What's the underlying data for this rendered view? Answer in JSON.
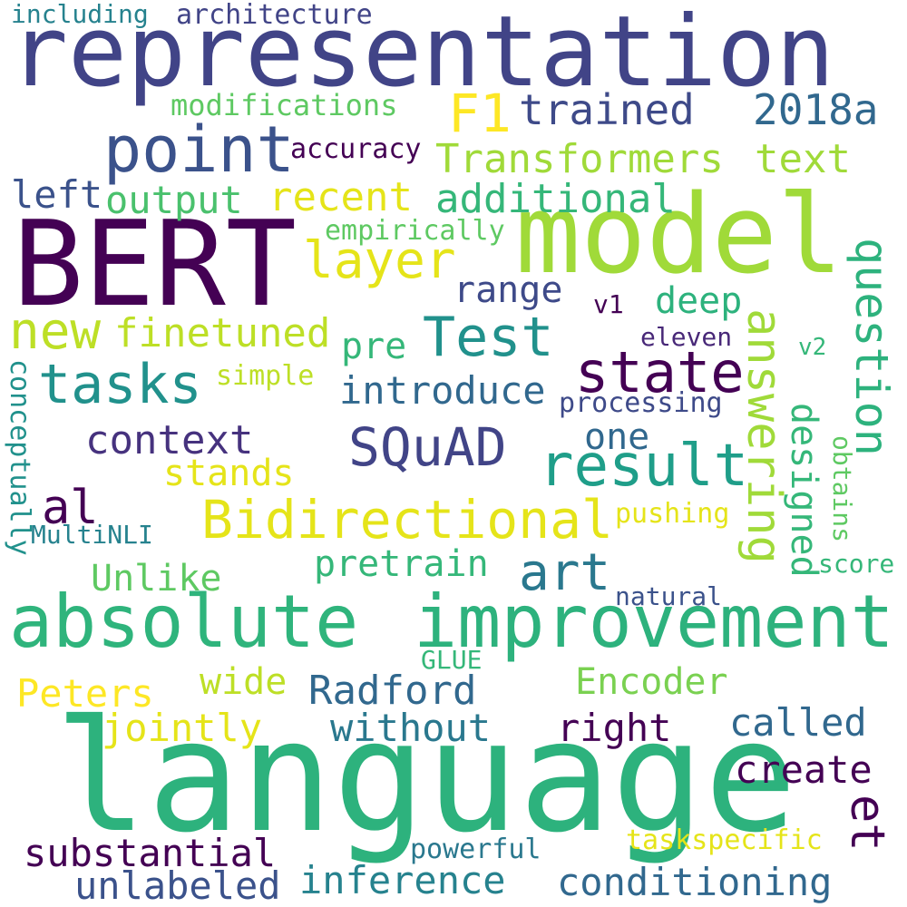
{
  "words": [
    {
      "text": "representation",
      "color": "#414487"
    },
    {
      "text": "BERT",
      "color": "#440154"
    },
    {
      "text": "model",
      "color": "#a0da39"
    },
    {
      "text": "language",
      "color": "#2db27d"
    },
    {
      "text": "absolute",
      "color": "#2fb47c"
    },
    {
      "text": "improvement",
      "color": "#2db27d"
    },
    {
      "text": "point",
      "color": "#3b528b"
    },
    {
      "text": "F1",
      "color": "#fde725"
    },
    {
      "text": "trained",
      "color": "#3e4a89"
    },
    {
      "text": "2018a",
      "color": "#31688e"
    },
    {
      "text": "Transformers",
      "color": "#a0da39"
    },
    {
      "text": "text",
      "color": "#a0da39"
    },
    {
      "text": "layer",
      "color": "#e5e419"
    },
    {
      "text": "recent",
      "color": "#e5e419"
    },
    {
      "text": "additional",
      "color": "#35b779"
    },
    {
      "text": "output",
      "color": "#4ac16d"
    },
    {
      "text": "left",
      "color": "#3b528b"
    },
    {
      "text": "accuracy",
      "color": "#440154"
    },
    {
      "text": "architecture",
      "color": "#414487"
    },
    {
      "text": "including",
      "color": "#26828e"
    },
    {
      "text": "modifications",
      "color": "#5ec962"
    },
    {
      "text": "empirically",
      "color": "#5ec962"
    },
    {
      "text": "range",
      "color": "#3e4a89"
    },
    {
      "text": "Test",
      "color": "#21918c"
    },
    {
      "text": "new",
      "color": "#bddf26"
    },
    {
      "text": "finetuned",
      "color": "#bddf26"
    },
    {
      "text": "tasks",
      "color": "#21918c"
    },
    {
      "text": "pre",
      "color": "#35b779"
    },
    {
      "text": "deep",
      "color": "#2db27d"
    },
    {
      "text": "v1",
      "color": "#440154"
    },
    {
      "text": "eleven",
      "color": "#482878"
    },
    {
      "text": "state",
      "color": "#440154"
    },
    {
      "text": "simple",
      "color": "#bddf26"
    },
    {
      "text": "introduce",
      "color": "#31688e"
    },
    {
      "text": "processing",
      "color": "#3e4a89"
    },
    {
      "text": "v2",
      "color": "#35b779"
    },
    {
      "text": "context",
      "color": "#46327e"
    },
    {
      "text": "SQuAD",
      "color": "#414487"
    },
    {
      "text": "one",
      "color": "#31688e"
    },
    {
      "text": "result",
      "color": "#1f9e89"
    },
    {
      "text": "stands",
      "color": "#e5e419"
    },
    {
      "text": "al",
      "color": "#440154"
    },
    {
      "text": "Bidirectional",
      "color": "#e5e419"
    },
    {
      "text": "pushing",
      "color": "#e5e419"
    },
    {
      "text": "MultiNLI",
      "color": "#26828e"
    },
    {
      "text": "pretrain",
      "color": "#35b779"
    },
    {
      "text": "art",
      "color": "#2a788e"
    },
    {
      "text": "Unlike",
      "color": "#5ec962"
    },
    {
      "text": "score",
      "color": "#35b779"
    },
    {
      "text": "natural",
      "color": "#3b528b"
    },
    {
      "text": "GLUE",
      "color": "#35b779"
    },
    {
      "text": "Peters",
      "color": "#fde725"
    },
    {
      "text": "wide",
      "color": "#bddf26"
    },
    {
      "text": "Radford",
      "color": "#31688e"
    },
    {
      "text": "Encoder",
      "color": "#7ad151"
    },
    {
      "text": "jointly",
      "color": "#e5e419"
    },
    {
      "text": "without",
      "color": "#2a788e"
    },
    {
      "text": "right",
      "color": "#440154"
    },
    {
      "text": "called",
      "color": "#31688e"
    },
    {
      "text": "create",
      "color": "#440154"
    },
    {
      "text": "substantial",
      "color": "#440154"
    },
    {
      "text": "powerful",
      "color": "#2a788e"
    },
    {
      "text": "taskspecific",
      "color": "#e5e419"
    },
    {
      "text": "unlabeled",
      "color": "#3b528b"
    },
    {
      "text": "inference",
      "color": "#26828e"
    },
    {
      "text": "conditioning",
      "color": "#31688e"
    },
    {
      "text": "question",
      "color": "#2db27d"
    },
    {
      "text": "answering",
      "color": "#a0da39"
    },
    {
      "text": "designed",
      "color": "#35b779"
    },
    {
      "text": "obtains",
      "color": "#5ec962"
    },
    {
      "text": "et",
      "color": "#440154"
    },
    {
      "text": "conceptually",
      "color": "#21918c"
    }
  ]
}
